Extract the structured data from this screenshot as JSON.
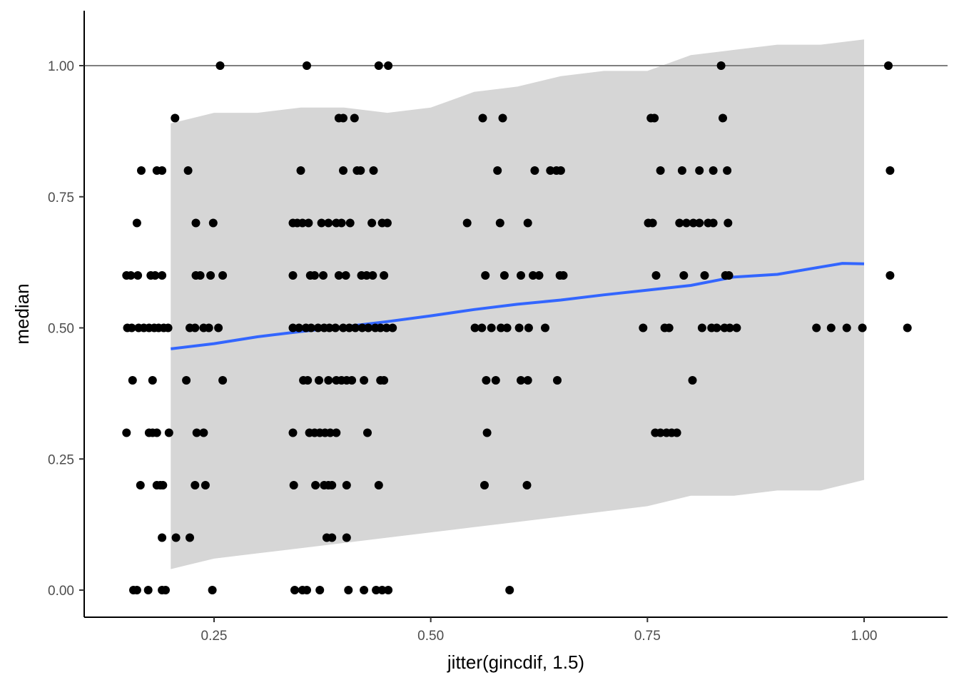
{
  "chart_data": {
    "type": "scatter",
    "xlabel": "jitter(gincdif, 1.5)",
    "ylabel": "median",
    "xlim": [
      0.095,
      1.1
    ],
    "ylim": [
      -0.05,
      1.1
    ],
    "x_ticks": [
      0.25,
      0.5,
      0.75,
      1.0
    ],
    "x_tick_labels": [
      "0.25",
      "0.50",
      "0.75",
      "1.00"
    ],
    "y_ticks": [
      0.0,
      0.25,
      0.5,
      0.75,
      1.0
    ],
    "y_tick_labels": [
      "0.00",
      "0.25",
      "0.50",
      "0.75",
      "1.00"
    ],
    "grid": false,
    "reference_line": {
      "y": 1.0,
      "color": "#7f7f7f"
    },
    "colors": {
      "points": "#000000",
      "smooth_line": "#3366ff",
      "ribbon": "#d6d6d6",
      "axis": "#000000"
    },
    "points": [
      [
        0.257,
        1.0
      ],
      [
        0.357,
        1.0
      ],
      [
        0.44,
        1.0
      ],
      [
        0.451,
        1.0
      ],
      [
        0.835,
        1.0
      ],
      [
        1.028,
        1.0
      ],
      [
        0.205,
        0.9
      ],
      [
        0.394,
        0.9
      ],
      [
        0.399,
        0.9
      ],
      [
        0.412,
        0.9
      ],
      [
        0.56,
        0.9
      ],
      [
        0.583,
        0.9
      ],
      [
        0.754,
        0.9
      ],
      [
        0.758,
        0.9
      ],
      [
        0.837,
        0.9
      ],
      [
        0.166,
        0.8
      ],
      [
        0.184,
        0.8
      ],
      [
        0.19,
        0.8
      ],
      [
        0.22,
        0.8
      ],
      [
        0.35,
        0.8
      ],
      [
        0.399,
        0.8
      ],
      [
        0.415,
        0.8
      ],
      [
        0.419,
        0.8
      ],
      [
        0.434,
        0.8
      ],
      [
        0.577,
        0.8
      ],
      [
        0.62,
        0.8
      ],
      [
        0.638,
        0.8
      ],
      [
        0.645,
        0.8
      ],
      [
        0.65,
        0.8
      ],
      [
        0.765,
        0.8
      ],
      [
        0.79,
        0.8
      ],
      [
        0.81,
        0.8
      ],
      [
        0.826,
        0.8
      ],
      [
        0.842,
        0.8
      ],
      [
        1.03,
        0.8
      ],
      [
        0.161,
        0.7
      ],
      [
        0.229,
        0.7
      ],
      [
        0.249,
        0.7
      ],
      [
        0.341,
        0.7
      ],
      [
        0.346,
        0.7
      ],
      [
        0.352,
        0.7
      ],
      [
        0.359,
        0.7
      ],
      [
        0.374,
        0.7
      ],
      [
        0.382,
        0.7
      ],
      [
        0.391,
        0.7
      ],
      [
        0.397,
        0.7
      ],
      [
        0.407,
        0.7
      ],
      [
        0.432,
        0.7
      ],
      [
        0.444,
        0.7
      ],
      [
        0.45,
        0.7
      ],
      [
        0.542,
        0.7
      ],
      [
        0.58,
        0.7
      ],
      [
        0.612,
        0.7
      ],
      [
        0.751,
        0.7
      ],
      [
        0.756,
        0.7
      ],
      [
        0.787,
        0.7
      ],
      [
        0.795,
        0.7
      ],
      [
        0.803,
        0.7
      ],
      [
        0.81,
        0.7
      ],
      [
        0.82,
        0.7
      ],
      [
        0.826,
        0.7
      ],
      [
        0.843,
        0.7
      ],
      [
        0.149,
        0.6
      ],
      [
        0.154,
        0.6
      ],
      [
        0.162,
        0.6
      ],
      [
        0.177,
        0.6
      ],
      [
        0.182,
        0.6
      ],
      [
        0.19,
        0.6
      ],
      [
        0.229,
        0.6
      ],
      [
        0.234,
        0.6
      ],
      [
        0.246,
        0.6
      ],
      [
        0.26,
        0.6
      ],
      [
        0.341,
        0.6
      ],
      [
        0.361,
        0.6
      ],
      [
        0.366,
        0.6
      ],
      [
        0.376,
        0.6
      ],
      [
        0.394,
        0.6
      ],
      [
        0.402,
        0.6
      ],
      [
        0.42,
        0.6
      ],
      [
        0.426,
        0.6
      ],
      [
        0.433,
        0.6
      ],
      [
        0.446,
        0.6
      ],
      [
        0.563,
        0.6
      ],
      [
        0.585,
        0.6
      ],
      [
        0.604,
        0.6
      ],
      [
        0.618,
        0.6
      ],
      [
        0.625,
        0.6
      ],
      [
        0.649,
        0.6
      ],
      [
        0.653,
        0.6
      ],
      [
        0.76,
        0.6
      ],
      [
        0.792,
        0.6
      ],
      [
        0.816,
        0.6
      ],
      [
        0.84,
        0.6
      ],
      [
        0.844,
        0.6
      ],
      [
        1.03,
        0.6
      ],
      [
        0.15,
        0.5
      ],
      [
        0.155,
        0.5
      ],
      [
        0.163,
        0.5
      ],
      [
        0.169,
        0.5
      ],
      [
        0.175,
        0.5
      ],
      [
        0.181,
        0.5
      ],
      [
        0.186,
        0.5
      ],
      [
        0.192,
        0.5
      ],
      [
        0.197,
        0.5
      ],
      [
        0.222,
        0.5
      ],
      [
        0.228,
        0.5
      ],
      [
        0.238,
        0.5
      ],
      [
        0.244,
        0.5
      ],
      [
        0.255,
        0.5
      ],
      [
        0.341,
        0.5
      ],
      [
        0.348,
        0.5
      ],
      [
        0.356,
        0.5
      ],
      [
        0.362,
        0.5
      ],
      [
        0.37,
        0.5
      ],
      [
        0.377,
        0.5
      ],
      [
        0.383,
        0.5
      ],
      [
        0.39,
        0.5
      ],
      [
        0.399,
        0.5
      ],
      [
        0.406,
        0.5
      ],
      [
        0.413,
        0.5
      ],
      [
        0.421,
        0.5
      ],
      [
        0.428,
        0.5
      ],
      [
        0.436,
        0.5
      ],
      [
        0.442,
        0.5
      ],
      [
        0.449,
        0.5
      ],
      [
        0.456,
        0.5
      ],
      [
        0.551,
        0.5
      ],
      [
        0.559,
        0.5
      ],
      [
        0.57,
        0.5
      ],
      [
        0.581,
        0.5
      ],
      [
        0.588,
        0.5
      ],
      [
        0.602,
        0.5
      ],
      [
        0.613,
        0.5
      ],
      [
        0.632,
        0.5
      ],
      [
        0.745,
        0.5
      ],
      [
        0.77,
        0.5
      ],
      [
        0.775,
        0.5
      ],
      [
        0.813,
        0.5
      ],
      [
        0.824,
        0.5
      ],
      [
        0.83,
        0.5
      ],
      [
        0.839,
        0.5
      ],
      [
        0.845,
        0.5
      ],
      [
        0.853,
        0.5
      ],
      [
        0.945,
        0.5
      ],
      [
        0.962,
        0.5
      ],
      [
        0.98,
        0.5
      ],
      [
        0.998,
        0.5
      ],
      [
        1.05,
        0.5
      ],
      [
        0.156,
        0.4
      ],
      [
        0.179,
        0.4
      ],
      [
        0.218,
        0.4
      ],
      [
        0.26,
        0.4
      ],
      [
        0.353,
        0.4
      ],
      [
        0.358,
        0.4
      ],
      [
        0.371,
        0.4
      ],
      [
        0.382,
        0.4
      ],
      [
        0.391,
        0.4
      ],
      [
        0.397,
        0.4
      ],
      [
        0.403,
        0.4
      ],
      [
        0.409,
        0.4
      ],
      [
        0.423,
        0.4
      ],
      [
        0.442,
        0.4
      ],
      [
        0.446,
        0.4
      ],
      [
        0.564,
        0.4
      ],
      [
        0.575,
        0.4
      ],
      [
        0.604,
        0.4
      ],
      [
        0.612,
        0.4
      ],
      [
        0.646,
        0.4
      ],
      [
        0.802,
        0.4
      ],
      [
        0.149,
        0.3
      ],
      [
        0.175,
        0.3
      ],
      [
        0.179,
        0.3
      ],
      [
        0.184,
        0.3
      ],
      [
        0.198,
        0.3
      ],
      [
        0.23,
        0.3
      ],
      [
        0.238,
        0.3
      ],
      [
        0.341,
        0.3
      ],
      [
        0.36,
        0.3
      ],
      [
        0.366,
        0.3
      ],
      [
        0.372,
        0.3
      ],
      [
        0.378,
        0.3
      ],
      [
        0.384,
        0.3
      ],
      [
        0.391,
        0.3
      ],
      [
        0.427,
        0.3
      ],
      [
        0.565,
        0.3
      ],
      [
        0.759,
        0.3
      ],
      [
        0.765,
        0.3
      ],
      [
        0.772,
        0.3
      ],
      [
        0.778,
        0.3
      ],
      [
        0.784,
        0.3
      ],
      [
        0.165,
        0.2
      ],
      [
        0.184,
        0.2
      ],
      [
        0.188,
        0.2
      ],
      [
        0.191,
        0.2
      ],
      [
        0.228,
        0.2
      ],
      [
        0.24,
        0.2
      ],
      [
        0.342,
        0.2
      ],
      [
        0.367,
        0.2
      ],
      [
        0.377,
        0.2
      ],
      [
        0.382,
        0.2
      ],
      [
        0.386,
        0.2
      ],
      [
        0.403,
        0.2
      ],
      [
        0.44,
        0.2
      ],
      [
        0.562,
        0.2
      ],
      [
        0.611,
        0.2
      ],
      [
        0.19,
        0.1
      ],
      [
        0.206,
        0.1
      ],
      [
        0.222,
        0.1
      ],
      [
        0.38,
        0.1
      ],
      [
        0.386,
        0.1
      ],
      [
        0.403,
        0.1
      ],
      [
        0.157,
        0.0
      ],
      [
        0.161,
        0.0
      ],
      [
        0.174,
        0.0
      ],
      [
        0.19,
        0.0
      ],
      [
        0.194,
        0.0
      ],
      [
        0.248,
        0.0
      ],
      [
        0.343,
        0.0
      ],
      [
        0.352,
        0.0
      ],
      [
        0.357,
        0.0
      ],
      [
        0.372,
        0.0
      ],
      [
        0.405,
        0.0
      ],
      [
        0.423,
        0.0
      ],
      [
        0.437,
        0.0
      ],
      [
        0.444,
        0.0
      ],
      [
        0.451,
        0.0
      ],
      [
        0.591,
        0.0
      ]
    ],
    "smooth_line": {
      "x": [
        0.2,
        0.25,
        0.3,
        0.35,
        0.4,
        0.45,
        0.5,
        0.55,
        0.6,
        0.65,
        0.7,
        0.75,
        0.8,
        0.85,
        0.9,
        0.95,
        0.975,
        1.0
      ],
      "y": [
        0.46,
        0.47,
        0.483,
        0.493,
        0.502,
        0.512,
        0.523,
        0.535,
        0.545,
        0.553,
        0.563,
        0.572,
        0.581,
        0.597,
        0.602,
        0.616,
        0.623,
        0.622
      ]
    },
    "confidence_band": {
      "x": [
        0.2,
        0.25,
        0.3,
        0.35,
        0.4,
        0.45,
        0.5,
        0.55,
        0.6,
        0.65,
        0.7,
        0.75,
        0.8,
        0.85,
        0.9,
        0.95,
        1.0
      ],
      "upper": [
        0.89,
        0.91,
        0.91,
        0.92,
        0.92,
        0.91,
        0.92,
        0.95,
        0.96,
        0.98,
        0.99,
        0.99,
        1.02,
        1.03,
        1.04,
        1.04,
        1.05
      ],
      "lower": [
        0.04,
        0.06,
        0.07,
        0.08,
        0.09,
        0.1,
        0.11,
        0.12,
        0.13,
        0.14,
        0.15,
        0.16,
        0.18,
        0.18,
        0.19,
        0.19,
        0.21
      ]
    }
  }
}
